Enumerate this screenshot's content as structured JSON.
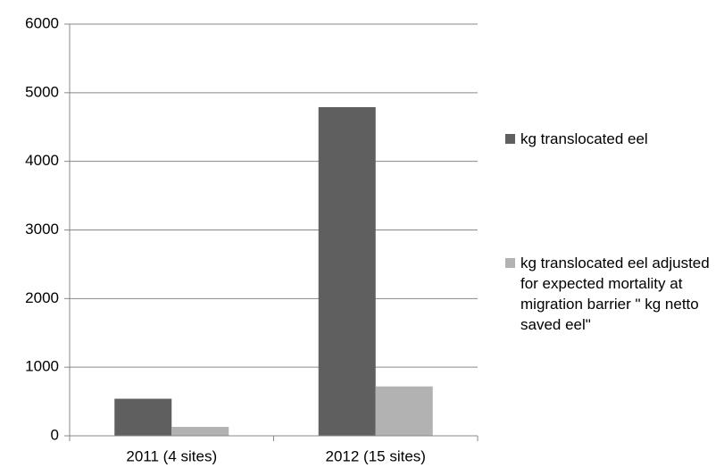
{
  "chart_data": {
    "type": "bar",
    "categories": [
      "2011 (4 sites)",
      "2012 (15 sites)"
    ],
    "series": [
      {
        "name": "kg translocated eel",
        "color": "#5f5f5f",
        "values": [
          540,
          4790
        ]
      },
      {
        "name": "kg translocated eel adjusted for expected mortality at migration barrier \" kg netto saved eel\"",
        "color": "#b2b2b2",
        "values": [
          130,
          720
        ]
      }
    ],
    "ylim": [
      0,
      6000
    ],
    "yticks": [
      0,
      1000,
      2000,
      3000,
      4000,
      5000,
      6000
    ],
    "grid": true,
    "legend": "right"
  }
}
